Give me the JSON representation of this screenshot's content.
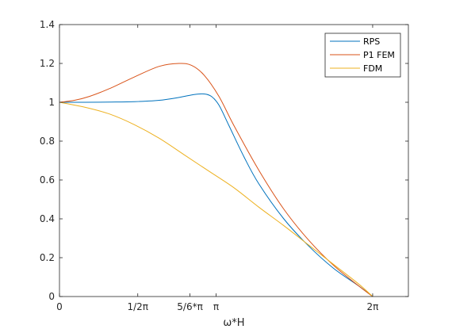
{
  "chart_data": {
    "type": "line",
    "xlabel": "ω*H",
    "ylabel": "",
    "title": "",
    "xlim": [
      0,
      7.0
    ],
    "ylim": [
      0,
      1.4
    ],
    "x_ticks": [
      {
        "value": 0,
        "label": "0"
      },
      {
        "value": 1.5708,
        "label": "1/2π"
      },
      {
        "value": 2.618,
        "label": "5/6*π"
      },
      {
        "value": 3.1416,
        "label": "π"
      },
      {
        "value": 6.2832,
        "label": "2π"
      }
    ],
    "y_ticks": [
      {
        "value": 0,
        "label": "0"
      },
      {
        "value": 0.2,
        "label": "0.2"
      },
      {
        "value": 0.4,
        "label": "0.4"
      },
      {
        "value": 0.6,
        "label": "0.6"
      },
      {
        "value": 0.8,
        "label": "0.8"
      },
      {
        "value": 1.0,
        "label": "1"
      },
      {
        "value": 1.2,
        "label": "1.2"
      },
      {
        "value": 1.4,
        "label": "1.4"
      }
    ],
    "legend_position": "top-right",
    "series": [
      {
        "name": "RPS",
        "color": "#0072bd",
        "x": [
          0,
          0.5,
          1.0,
          1.5,
          2.0,
          2.4,
          2.7,
          2.9,
          3.05,
          3.2,
          3.4,
          3.7,
          4.0,
          4.5,
          5.0,
          5.5,
          6.0,
          6.2832
        ],
        "y": [
          1.0,
          1.0,
          1.001,
          1.003,
          1.01,
          1.025,
          1.04,
          1.043,
          1.03,
          0.985,
          0.88,
          0.72,
          0.58,
          0.4,
          0.26,
          0.145,
          0.055,
          0.0
        ]
      },
      {
        "name": "P1 FEM",
        "color": "#d95319",
        "x": [
          0,
          0.3,
          0.6,
          1.0,
          1.5,
          2.0,
          2.4,
          2.65,
          2.9,
          3.2,
          3.5,
          4.0,
          4.5,
          5.0,
          5.5,
          6.0,
          6.2832
        ],
        "y": [
          1.0,
          1.01,
          1.03,
          1.07,
          1.13,
          1.185,
          1.2,
          1.19,
          1.14,
          1.03,
          0.88,
          0.65,
          0.45,
          0.29,
          0.16,
          0.055,
          0.0
        ]
      },
      {
        "name": "FDM",
        "color": "#edb120",
        "x": [
          0,
          0.5,
          1.0,
          1.5,
          2.0,
          2.5,
          3.0,
          3.5,
          4.0,
          4.5,
          5.0,
          5.5,
          6.0,
          6.2832
        ],
        "y": [
          1.0,
          0.975,
          0.94,
          0.885,
          0.815,
          0.73,
          0.645,
          0.56,
          0.46,
          0.365,
          0.265,
          0.165,
          0.065,
          0.0
        ]
      }
    ]
  }
}
